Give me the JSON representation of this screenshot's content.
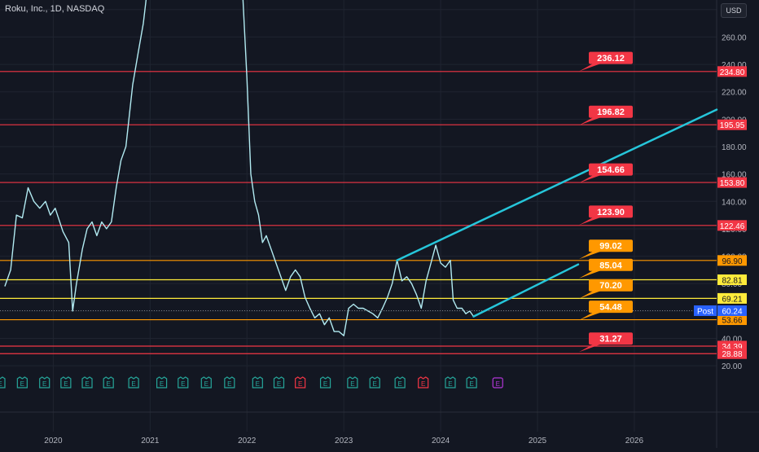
{
  "chart_data": {
    "type": "line",
    "title": "Roku, Inc., 1D, NASDAQ",
    "currency": "USD",
    "xlabel": "",
    "ylabel": "",
    "ylim": [
      10,
      287
    ],
    "y_ticks": [
      "20.00",
      "40.00",
      "60.00",
      "80.00",
      "100.00",
      "120.00",
      "140.00",
      "160.00",
      "180.00",
      "200.00",
      "220.00",
      "240.00",
      "260.00",
      "280.00"
    ],
    "x_ticks": [
      {
        "t": 2020.0,
        "label": "2020"
      },
      {
        "t": 2021.0,
        "label": "2021"
      },
      {
        "t": 2022.0,
        "label": "2022"
      },
      {
        "t": 2023.0,
        "label": "2023"
      },
      {
        "t": 2024.0,
        "label": "2024"
      },
      {
        "t": 2025.0,
        "label": "2025"
      },
      {
        "t": 2026.0,
        "label": "2026"
      }
    ],
    "price_series": {
      "name": "",
      "color": "#b2ebf2",
      "points": [
        [
          2019.5,
          78
        ],
        [
          2019.56,
          90
        ],
        [
          2019.62,
          130
        ],
        [
          2019.68,
          128
        ],
        [
          2019.74,
          150
        ],
        [
          2019.8,
          140
        ],
        [
          2019.86,
          135
        ],
        [
          2019.92,
          140
        ],
        [
          2019.97,
          130
        ],
        [
          2020.02,
          135
        ],
        [
          2020.1,
          118
        ],
        [
          2020.16,
          110
        ],
        [
          2020.2,
          60
        ],
        [
          2020.24,
          80
        ],
        [
          2020.3,
          105
        ],
        [
          2020.35,
          120
        ],
        [
          2020.4,
          125
        ],
        [
          2020.45,
          115
        ],
        [
          2020.5,
          125
        ],
        [
          2020.55,
          120
        ],
        [
          2020.6,
          125
        ],
        [
          2020.65,
          150
        ],
        [
          2020.7,
          170
        ],
        [
          2020.75,
          180
        ],
        [
          2020.82,
          225
        ],
        [
          2020.88,
          250
        ],
        [
          2020.93,
          270
        ],
        [
          2020.98,
          300
        ],
        [
          2021.05,
          320
        ],
        [
          2021.15,
          340
        ],
        [
          2021.25,
          360
        ],
        [
          2021.35,
          380
        ],
        [
          2021.45,
          420
        ],
        [
          2021.55,
          450
        ],
        [
          2021.65,
          470
        ],
        [
          2021.75,
          440
        ],
        [
          2021.82,
          400
        ],
        [
          2021.87,
          330
        ],
        [
          2021.9,
          290
        ],
        [
          2021.95,
          300
        ],
        [
          2022.0,
          230
        ],
        [
          2022.04,
          160
        ],
        [
          2022.08,
          140
        ],
        [
          2022.12,
          130
        ],
        [
          2022.16,
          110
        ],
        [
          2022.2,
          115
        ],
        [
          2022.25,
          105
        ],
        [
          2022.3,
          95
        ],
        [
          2022.35,
          85
        ],
        [
          2022.4,
          75
        ],
        [
          2022.45,
          85
        ],
        [
          2022.5,
          90
        ],
        [
          2022.55,
          85
        ],
        [
          2022.6,
          70
        ],
        [
          2022.65,
          62
        ],
        [
          2022.7,
          55
        ],
        [
          2022.75,
          58
        ],
        [
          2022.8,
          50
        ],
        [
          2022.85,
          55
        ],
        [
          2022.9,
          45
        ],
        [
          2022.95,
          45
        ],
        [
          2023.0,
          42
        ],
        [
          2023.05,
          62
        ],
        [
          2023.1,
          65
        ],
        [
          2023.15,
          62
        ],
        [
          2023.2,
          62
        ],
        [
          2023.25,
          60
        ],
        [
          2023.3,
          58
        ],
        [
          2023.35,
          55
        ],
        [
          2023.4,
          62
        ],
        [
          2023.45,
          70
        ],
        [
          2023.5,
          80
        ],
        [
          2023.55,
          97
        ],
        [
          2023.6,
          82
        ],
        [
          2023.65,
          85
        ],
        [
          2023.7,
          80
        ],
        [
          2023.75,
          72
        ],
        [
          2023.8,
          62
        ],
        [
          2023.85,
          82
        ],
        [
          2023.9,
          95
        ],
        [
          2023.95,
          108
        ],
        [
          2024.0,
          95
        ],
        [
          2024.05,
          92
        ],
        [
          2024.1,
          97
        ],
        [
          2024.13,
          68
        ],
        [
          2024.17,
          62
        ],
        [
          2024.22,
          62
        ],
        [
          2024.26,
          58
        ],
        [
          2024.3,
          60
        ],
        [
          2024.34,
          56
        ]
      ]
    },
    "trendlines": [
      {
        "t1": 2023.55,
        "v1": 97,
        "t2": 2026.85,
        "v2": 207,
        "color": "#26c6da"
      },
      {
        "t1": 2024.34,
        "v1": 56,
        "t2": 2025.42,
        "v2": 94,
        "color": "#26c6da"
      }
    ],
    "horizontal_levels": [
      {
        "value": 234.8,
        "label": "234.80",
        "color": "#f23645"
      },
      {
        "value": 195.95,
        "label": "195.95",
        "color": "#f23645"
      },
      {
        "value": 153.8,
        "label": "153.80",
        "color": "#f23645"
      },
      {
        "value": 122.46,
        "label": "122.46",
        "color": "#f23645"
      },
      {
        "value": 96.9,
        "label": "96.90",
        "color": "#ff9800"
      },
      {
        "value": 82.81,
        "label": "82.81",
        "color": "#ffeb3b"
      },
      {
        "value": 69.21,
        "label": "69.21",
        "color": "#ffeb3b"
      },
      {
        "value": 53.66,
        "label": "53.66",
        "color": "#ff9800"
      },
      {
        "value": 34.39,
        "label": "34.39",
        "color": "#f23645"
      },
      {
        "value": 28.88,
        "label": "28.88",
        "color": "#f23645"
      }
    ],
    "current_price": {
      "value": 60.24,
      "label": "60.24",
      "tag": "Post",
      "color": "#2962ff"
    },
    "callouts": [
      {
        "text": "236.12",
        "value": 236.12,
        "color": "#f23645"
      },
      {
        "text": "196.82",
        "value": 196.82,
        "color": "#f23645"
      },
      {
        "text": "154.66",
        "value": 154.66,
        "color": "#f23645"
      },
      {
        "text": "123.90",
        "value": 123.9,
        "color": "#f23645"
      },
      {
        "text": "99.02",
        "value": 99.02,
        "color": "#ff9800"
      },
      {
        "text": "85.04",
        "value": 85.04,
        "color": "#ff9800"
      },
      {
        "text": "70.20",
        "value": 70.2,
        "color": "#ff9800"
      },
      {
        "text": "54.48",
        "value": 54.48,
        "color": "#ff9800"
      },
      {
        "text": "31.27",
        "value": 31.27,
        "color": "#f23645"
      }
    ],
    "earnings_markers": [
      {
        "t": 2019.45,
        "text": "E",
        "kind": "beat"
      },
      {
        "t": 2019.68,
        "text": "E",
        "kind": "beat"
      },
      {
        "t": 2019.91,
        "text": "E",
        "kind": "beat"
      },
      {
        "t": 2020.13,
        "text": "E",
        "kind": "beat"
      },
      {
        "t": 2020.35,
        "text": "E",
        "kind": "beat"
      },
      {
        "t": 2020.57,
        "text": "E",
        "kind": "beat"
      },
      {
        "t": 2020.83,
        "text": "E",
        "kind": "beat"
      },
      {
        "t": 2021.12,
        "text": "E",
        "kind": "beat"
      },
      {
        "t": 2021.34,
        "text": "E",
        "kind": "beat"
      },
      {
        "t": 2021.58,
        "text": "E",
        "kind": "beat"
      },
      {
        "t": 2021.82,
        "text": "E",
        "kind": "beat"
      },
      {
        "t": 2022.11,
        "text": "E",
        "kind": "beat"
      },
      {
        "t": 2022.33,
        "text": "E",
        "kind": "beat"
      },
      {
        "t": 2022.55,
        "text": "E",
        "kind": "miss"
      },
      {
        "t": 2022.81,
        "text": "E",
        "kind": "beat"
      },
      {
        "t": 2023.09,
        "text": "E",
        "kind": "beat"
      },
      {
        "t": 2023.32,
        "text": "E",
        "kind": "beat"
      },
      {
        "t": 2023.58,
        "text": "E",
        "kind": "beat"
      },
      {
        "t": 2023.82,
        "text": "E",
        "kind": "miss"
      },
      {
        "t": 2024.1,
        "text": "E",
        "kind": "beat"
      },
      {
        "t": 2024.32,
        "text": "E",
        "kind": "beat"
      },
      {
        "t": 2024.59,
        "text": "E",
        "kind": "upcoming"
      }
    ],
    "colors": {
      "background": "#131722",
      "grid": "#1f2430",
      "axis_text": "#b2b5be",
      "beat": "#26a69a",
      "miss": "#f23645",
      "upcoming": "#b235d8"
    },
    "grid": true
  }
}
